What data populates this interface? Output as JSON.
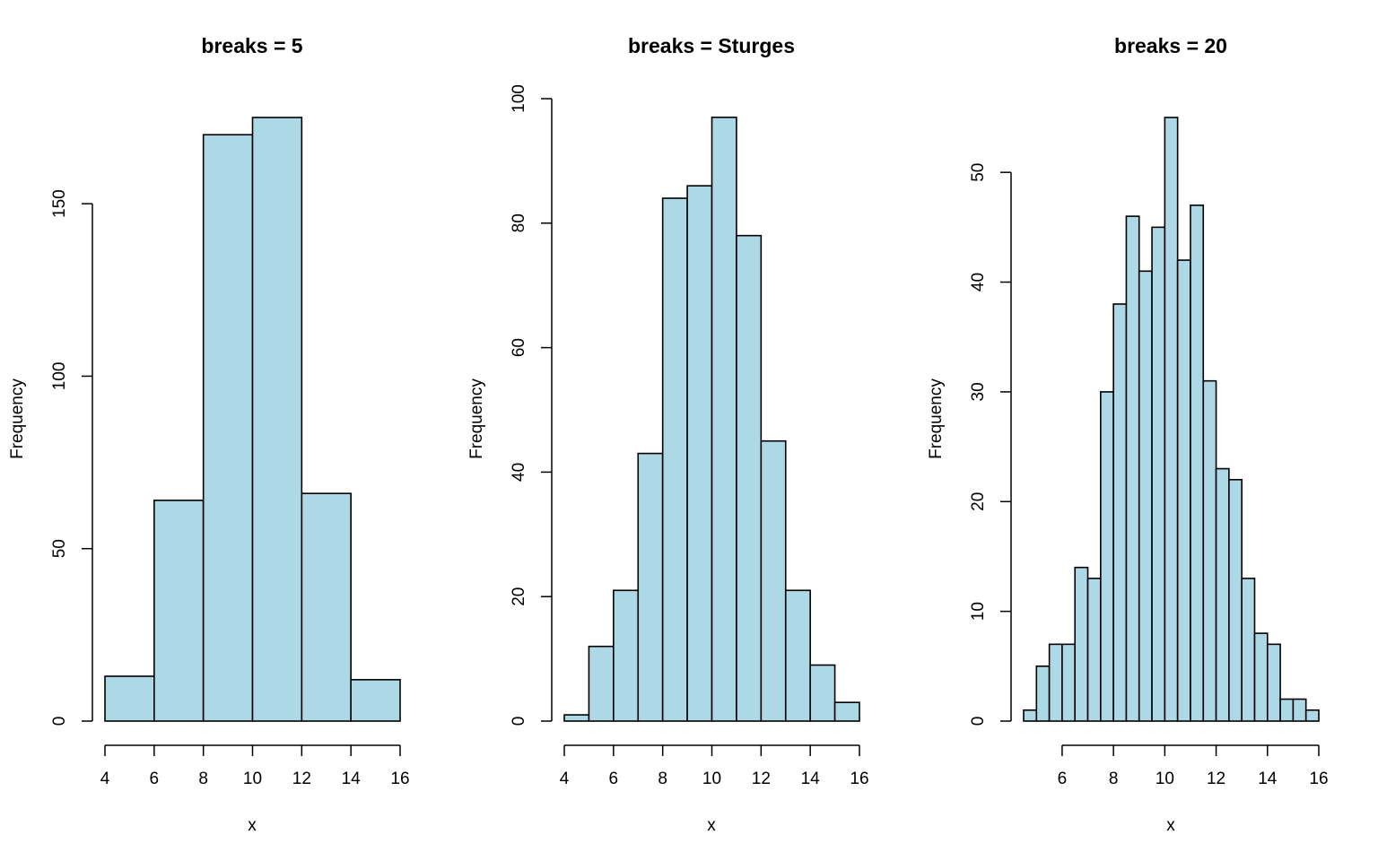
{
  "colors": {
    "bar_fill": "#add8e6",
    "bar_stroke": "#000000",
    "background": "#ffffff"
  },
  "chart_data": [
    {
      "type": "bar",
      "title": "breaks = 5",
      "xlabel": "x",
      "ylabel": "Frequency",
      "breaks": [
        4,
        6,
        8,
        10,
        12,
        14,
        16
      ],
      "counts": [
        13,
        64,
        170,
        175,
        66,
        12
      ],
      "xticks": [
        4,
        6,
        8,
        10,
        12,
        14,
        16
      ],
      "yticks": [
        0,
        50,
        100,
        150
      ],
      "xlim": [
        4,
        16
      ],
      "ylim": [
        0,
        175
      ]
    },
    {
      "type": "bar",
      "title": "breaks = Sturges",
      "xlabel": "x",
      "ylabel": "Frequency",
      "breaks": [
        4,
        5,
        6,
        7,
        8,
        9,
        10,
        11,
        12,
        13,
        14,
        15,
        16
      ],
      "counts": [
        1,
        12,
        21,
        43,
        84,
        86,
        97,
        78,
        45,
        21,
        9,
        3
      ],
      "xticks": [
        4,
        6,
        8,
        10,
        12,
        14,
        16
      ],
      "yticks": [
        0,
        20,
        40,
        60,
        80,
        100
      ],
      "xlim": [
        4,
        16
      ],
      "ylim": [
        0,
        100
      ]
    },
    {
      "type": "bar",
      "title": "breaks = 20",
      "xlabel": "x",
      "ylabel": "Frequency",
      "breaks": [
        4.5,
        5,
        5.5,
        6,
        6.5,
        7,
        7.5,
        8,
        8.5,
        9,
        9.5,
        10,
        10.5,
        11,
        11.5,
        12,
        12.5,
        13,
        13.5,
        14,
        14.5,
        15,
        15.5,
        16
      ],
      "counts": [
        1,
        5,
        7,
        7,
        14,
        13,
        30,
        38,
        46,
        41,
        45,
        55,
        42,
        47,
        31,
        23,
        22,
        13,
        8,
        7,
        2,
        2,
        1
      ],
      "xticks": [
        6,
        8,
        10,
        12,
        14,
        16
      ],
      "yticks": [
        0,
        10,
        20,
        30,
        40,
        50
      ],
      "xlim": [
        4.5,
        16
      ],
      "ylim": [
        0,
        55
      ]
    }
  ]
}
